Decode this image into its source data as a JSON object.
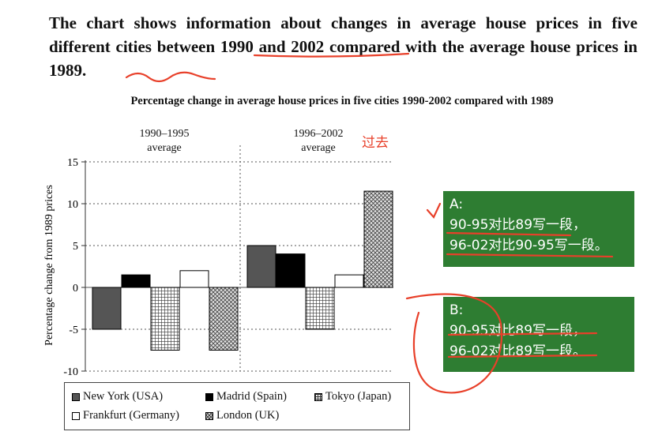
{
  "prompt": {
    "text": "The chart shows information about changes in average house prices in five different cities between 1990 and 2002 compared with the average house prices in 1989."
  },
  "chart_data": {
    "type": "bar",
    "title": "Percentage change in average house prices in five cities 1990-2002 compared with 1989",
    "ylabel": "Percentage change from 1989 prices",
    "ylim": [
      -10,
      15
    ],
    "yticks": [
      15,
      10,
      5,
      0,
      -5,
      -10
    ],
    "grid": true,
    "groups": [
      {
        "label_line1": "1990–1995",
        "label_line2": "average"
      },
      {
        "label_line1": "1996–2002",
        "label_line2": "average"
      }
    ],
    "series": [
      {
        "name": "New York (USA)",
        "values": [
          -5,
          5
        ],
        "pattern": "dark-gray"
      },
      {
        "name": "Madrid (Spain)",
        "values": [
          1.5,
          4
        ],
        "pattern": "black"
      },
      {
        "name": "Tokyo (Japan)",
        "values": [
          -7.5,
          -5
        ],
        "pattern": "grid-hatch"
      },
      {
        "name": "Frankfurt (Germany)",
        "values": [
          2,
          1.5
        ],
        "pattern": "white"
      },
      {
        "name": "London (UK)",
        "values": [
          -7.5,
          11.5
        ],
        "pattern": "cross-hatch"
      }
    ],
    "legend_order": [
      0,
      1,
      2,
      3,
      4
    ],
    "legend_position": "bottom"
  },
  "annotations": {
    "past_label": "过去",
    "note_a": {
      "line1": "A:",
      "line2": "90-95对比89写一段，",
      "line3": "96-02对比90-95写一段。"
    },
    "note_b": {
      "line1": "B:",
      "line2": "90-95对比89写一段，",
      "line3": "96-02对比89写一段。"
    },
    "ink_color": "#e8402a",
    "note_color": "#2e7d32"
  }
}
